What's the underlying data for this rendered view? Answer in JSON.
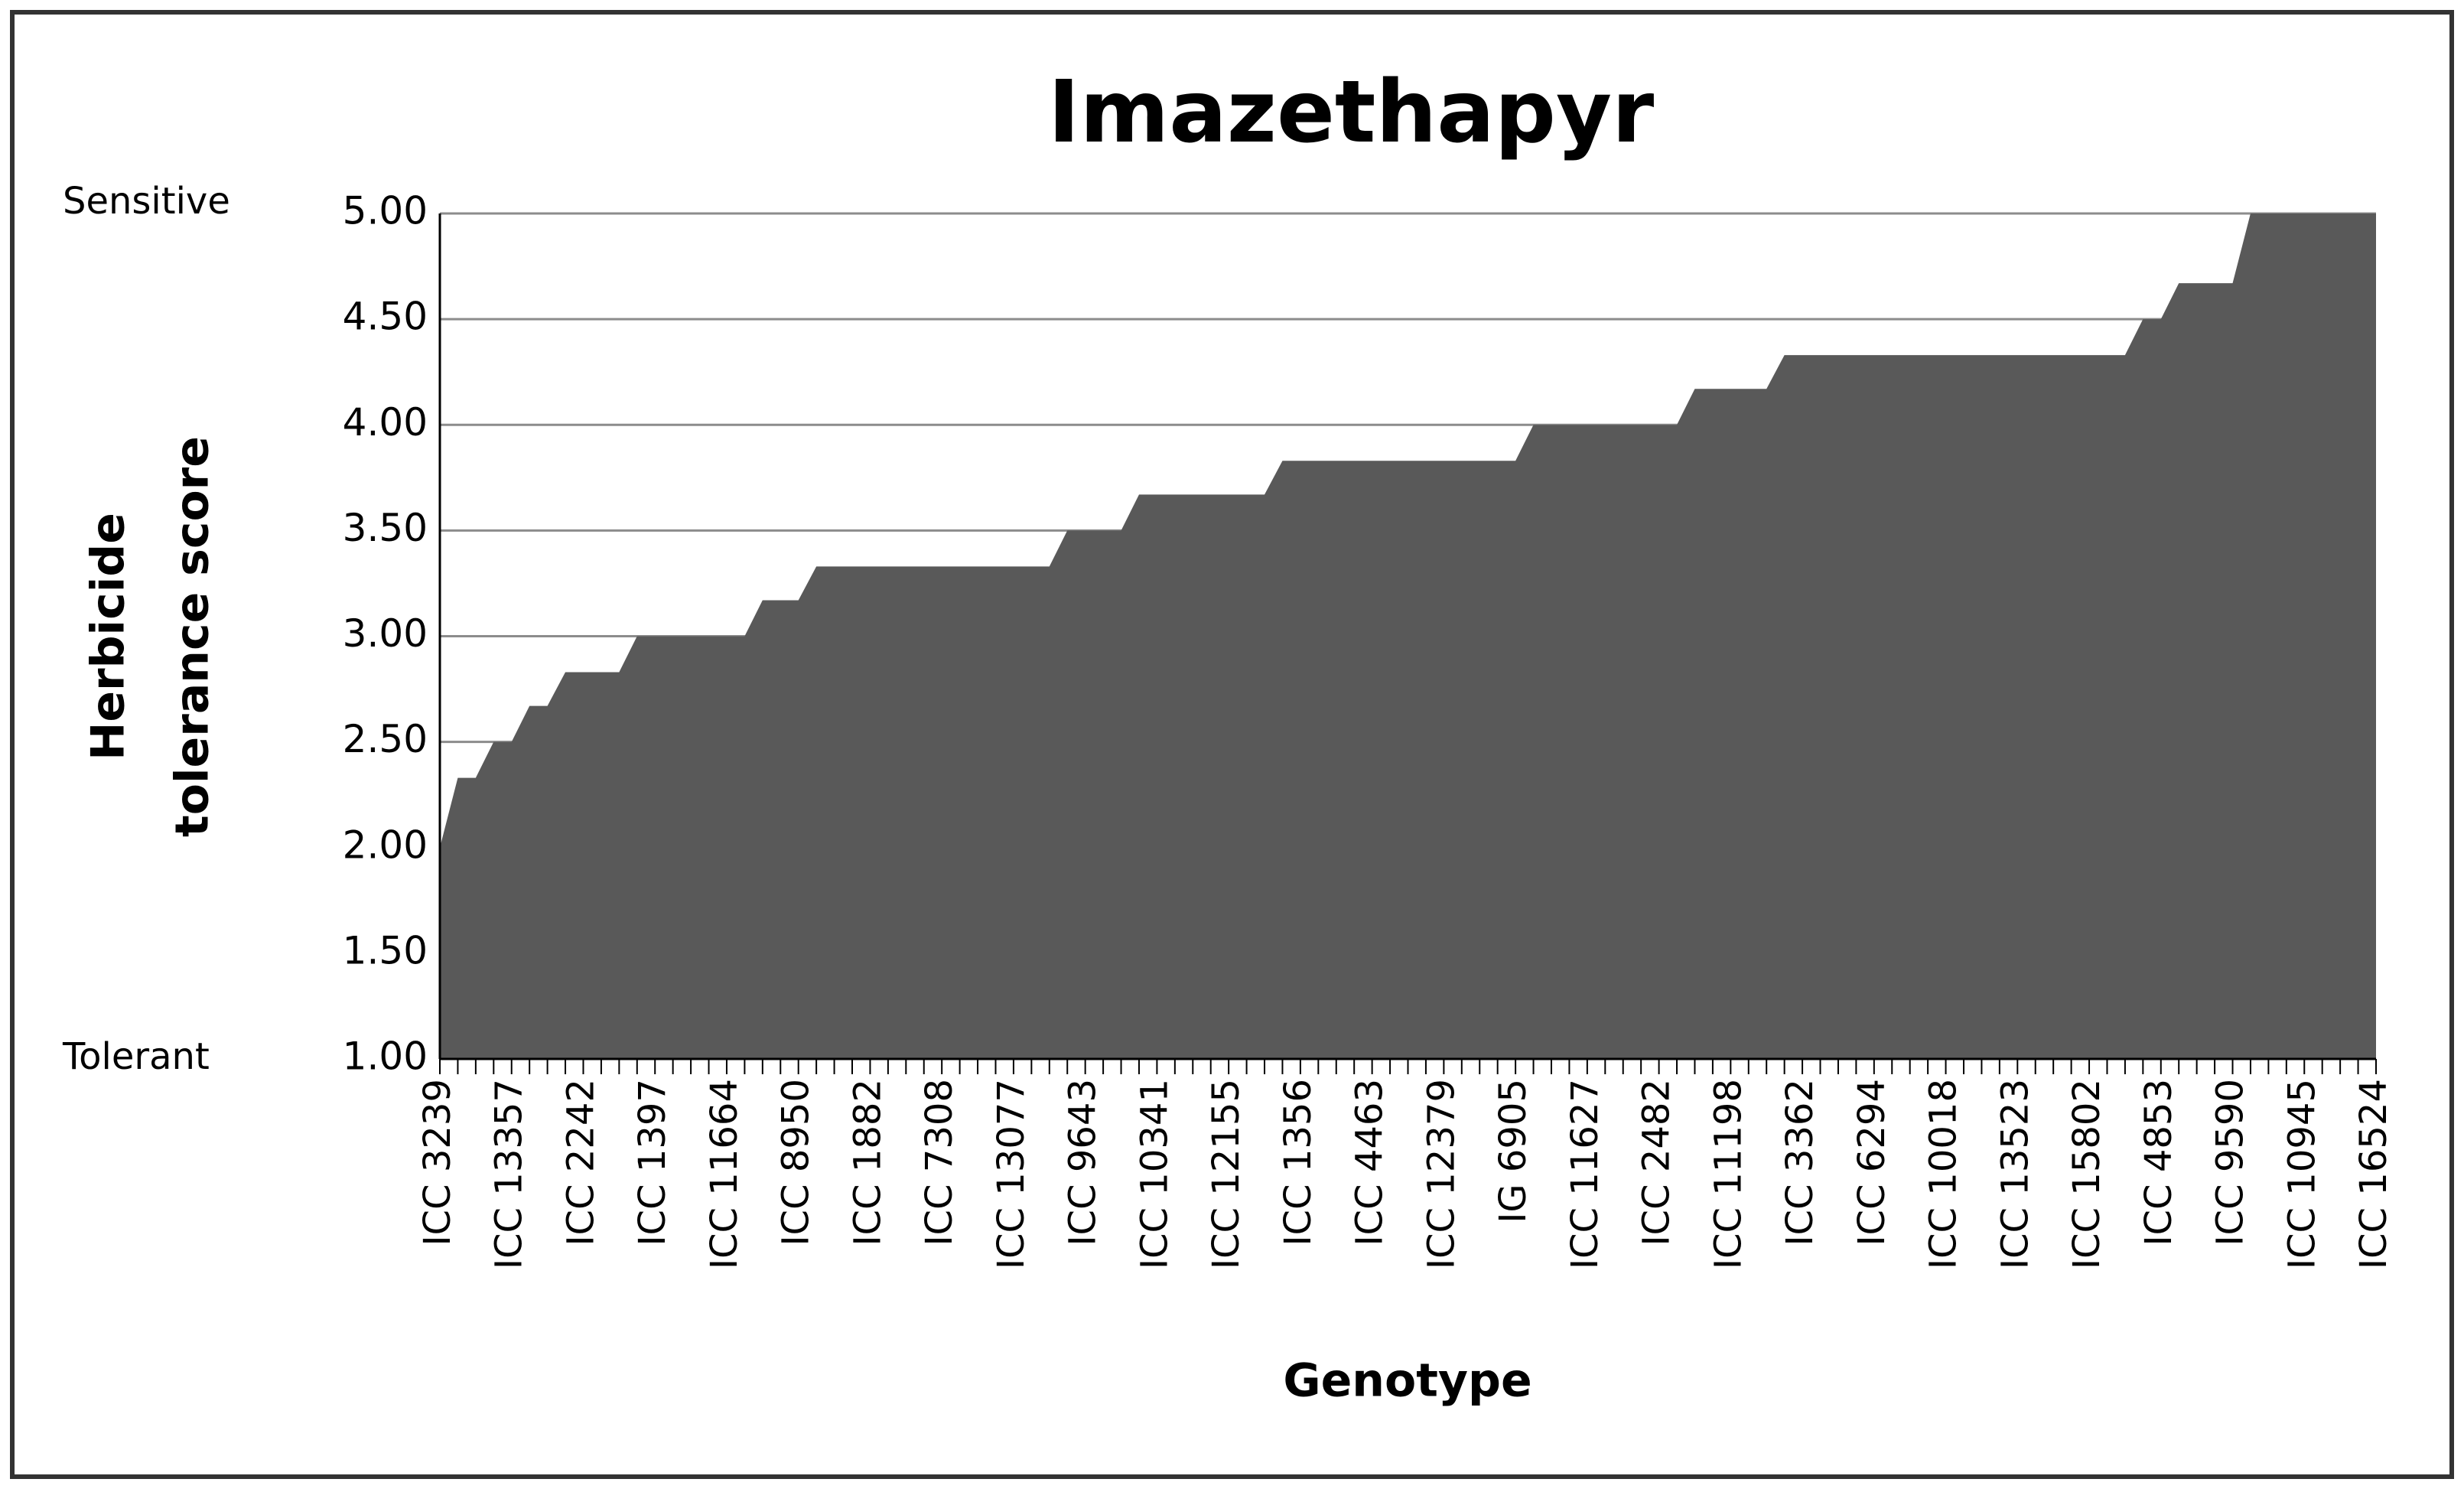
{
  "chart_data": {
    "type": "area",
    "title": "Imazethapyr",
    "x_label": "Genotype",
    "y_label": [
      "Herbicide",
      "tolerance score"
    ],
    "annotations": [
      "Sensitive",
      "Tolerant"
    ],
    "categories": [
      "ICC 3239",
      null,
      null,
      null,
      "ICC 13357",
      null,
      null,
      null,
      "ICC 2242",
      null,
      null,
      null,
      "ICC 1397",
      null,
      null,
      null,
      "ICC 11664",
      null,
      null,
      null,
      "ICC 8950",
      null,
      null,
      null,
      "ICC 1882",
      null,
      null,
      null,
      "ICC 7308",
      null,
      null,
      null,
      "ICC 13077",
      null,
      null,
      null,
      "ICC 9643",
      null,
      null,
      null,
      "ICC 10341",
      null,
      null,
      null,
      "ICC 12155",
      null,
      null,
      null,
      "ICC 1356",
      null,
      null,
      null,
      "ICC 4463",
      null,
      null,
      null,
      "ICC 12379",
      null,
      null,
      null,
      "IG 6905",
      null,
      null,
      null,
      "ICC 11627",
      null,
      null,
      null,
      "ICC 2482",
      null,
      null,
      null,
      "ICC 11198",
      null,
      null,
      null,
      "ICC 3362",
      null,
      null,
      null,
      "ICC 6294",
      null,
      null,
      null,
      "ICC 10018",
      null,
      null,
      null,
      "ICC 13523",
      null,
      null,
      null,
      "ICC 15802",
      null,
      null,
      null,
      "ICC 4853",
      null,
      null,
      null,
      "ICC 9590",
      null,
      null,
      null,
      "ICC 10945",
      null,
      null,
      null,
      "ICC 16524"
    ],
    "values": [
      2,
      2.33,
      2.33,
      2.5,
      2.5,
      2.67,
      2.67,
      2.83,
      2.83,
      2.83,
      2.83,
      3,
      3,
      3,
      3,
      3,
      3,
      3,
      3.17,
      3.17,
      3.17,
      3.33,
      3.33,
      3.33,
      3.33,
      3.33,
      3.33,
      3.33,
      3.33,
      3.33,
      3.33,
      3.33,
      3.33,
      3.33,
      3.33,
      3.5,
      3.5,
      3.5,
      3.5,
      3.67,
      3.67,
      3.67,
      3.67,
      3.67,
      3.67,
      3.67,
      3.67,
      3.83,
      3.83,
      3.83,
      3.83,
      3.83,
      3.83,
      3.83,
      3.83,
      3.83,
      3.83,
      3.83,
      3.83,
      3.83,
      3.83,
      4,
      4,
      4,
      4,
      4,
      4,
      4,
      4,
      4,
      4.17,
      4.17,
      4.17,
      4.17,
      4.17,
      4.33,
      4.33,
      4.33,
      4.33,
      4.33,
      4.33,
      4.33,
      4.33,
      4.33,
      4.33,
      4.33,
      4.33,
      4.33,
      4.33,
      4.33,
      4.33,
      4.33,
      4.33,
      4.33,
      4.33,
      4.5,
      4.5,
      4.67,
      4.67,
      4.67,
      4.67,
      5,
      5,
      5,
      5,
      5,
      5,
      5,
      5
    ],
    "color": "#595959",
    "ylim": [
      1,
      5
    ],
    "yticks": [
      {
        "value": 1,
        "label": "1.00"
      },
      {
        "value": 1.5,
        "label": "1.50"
      },
      {
        "value": 2,
        "label": "2.00"
      },
      {
        "value": 2.5,
        "label": "2.50"
      },
      {
        "value": 3,
        "label": "3.00"
      },
      {
        "value": 3.5,
        "label": "3.50"
      },
      {
        "value": 4,
        "label": "4.00"
      },
      {
        "value": 4.5,
        "label": "4.50"
      },
      {
        "value": 5,
        "label": "5.00"
      }
    ],
    "grid": true
  }
}
